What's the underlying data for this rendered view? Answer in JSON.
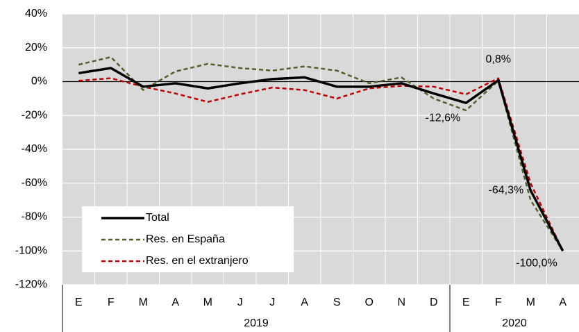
{
  "chart_data": {
    "type": "line",
    "categories": [
      "E",
      "F",
      "M",
      "A",
      "M",
      "J",
      "J",
      "A",
      "S",
      "O",
      "N",
      "D",
      "E",
      "F",
      "M",
      "A"
    ],
    "x_groups": [
      {
        "label": "2019",
        "count": 12
      },
      {
        "label": "2020",
        "count": 4
      }
    ],
    "series": [
      {
        "name": "Total",
        "color": "#000000",
        "dash": false,
        "values": [
          5,
          8,
          -3,
          -1,
          -4,
          -1,
          1.5,
          2.5,
          -3,
          -3,
          -1,
          -7,
          -12.6,
          0.8,
          -64.3,
          -100
        ],
        "value_labels": [
          null,
          null,
          null,
          null,
          null,
          null,
          null,
          null,
          null,
          null,
          null,
          null,
          "-12,6%",
          "0,8%",
          "-64,3%",
          "-100,0%"
        ]
      },
      {
        "name": "Res. en España",
        "color": "#4f6228",
        "dash": true,
        "values": [
          10,
          14.5,
          -5,
          6,
          10.5,
          8,
          6.5,
          9,
          6.5,
          -1,
          2.5,
          -10,
          -17,
          0.5,
          -70,
          -100
        ]
      },
      {
        "name": "Res. en el extranjero",
        "color": "#c00000",
        "dash": true,
        "values": [
          0.5,
          2,
          -3,
          -7,
          -12,
          -7.5,
          -3.5,
          -5,
          -10,
          -4,
          -2.5,
          -3,
          -7.5,
          2,
          -60,
          -100
        ]
      }
    ],
    "ylim": [
      -120,
      40
    ],
    "yticks": [
      {
        "value": -120,
        "label": "-120%"
      },
      {
        "value": -100,
        "label": "-100%"
      },
      {
        "value": -80,
        "label": "-80%"
      },
      {
        "value": -60,
        "label": "-60%"
      },
      {
        "value": -40,
        "label": "-40%"
      },
      {
        "value": -20,
        "label": "-20%"
      },
      {
        "value": 0,
        "label": "0%"
      },
      {
        "value": 20,
        "label": "20%"
      },
      {
        "value": 40,
        "label": "40%"
      }
    ],
    "grid": true,
    "legend": "lower left"
  }
}
